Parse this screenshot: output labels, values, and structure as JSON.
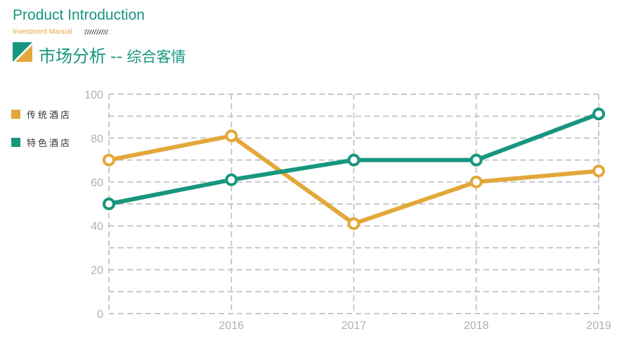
{
  "header": {
    "title": "Product Introduction",
    "subtitle": "Investment Manual",
    "main_title": "市场分析",
    "separator": "--",
    "main_subtitle": "综合客情"
  },
  "colors": {
    "teal": "#17967f",
    "gold": "#e3a83a",
    "grid": "#c8c8c8"
  },
  "chart_data": {
    "type": "line",
    "x": [
      "",
      "2016",
      "2017",
      "2018",
      "2019"
    ],
    "ylim": [
      0,
      100
    ],
    "yticks": [
      0,
      20,
      40,
      60,
      80,
      100
    ],
    "xlabel": "",
    "ylabel": "",
    "grid": true,
    "legend_position": "left",
    "series": [
      {
        "name": "传统酒店",
        "color": "#e3a83a",
        "values": [
          70,
          81,
          41,
          60,
          65
        ]
      },
      {
        "name": "特色酒店",
        "color": "#17967f",
        "values": [
          50,
          61,
          70,
          70,
          91
        ]
      }
    ]
  }
}
